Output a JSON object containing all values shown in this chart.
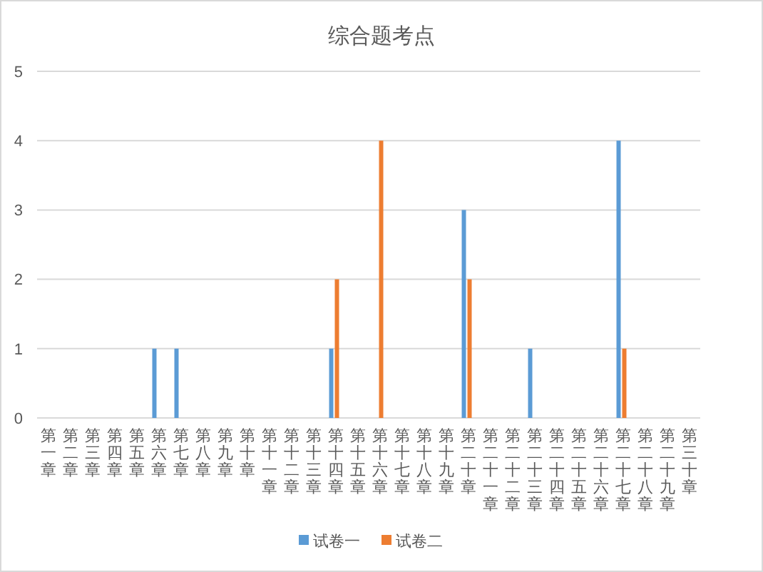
{
  "chart_data": {
    "type": "bar",
    "title": "综合题考点",
    "categories": [
      "第一章",
      "第二章",
      "第三章",
      "第四章",
      "第五章",
      "第六章",
      "第七章",
      "第八章",
      "第九章",
      "第十章",
      "第十一章",
      "第十二章",
      "第十三章",
      "第十四章",
      "第十五章",
      "第十六章",
      "第十七章",
      "第十八章",
      "第十九章",
      "第二十章",
      "第二十一章",
      "第二十二章",
      "第二十三章",
      "第二十四章",
      "第二十五章",
      "第二十六章",
      "第二十七章",
      "第二十八章",
      "第二十九章",
      "第三十章"
    ],
    "series": [
      {
        "name": "试卷一",
        "color": "#5b9bd5",
        "values": [
          0,
          0,
          0,
          0,
          0,
          1,
          1,
          0,
          0,
          0,
          0,
          0,
          0,
          1,
          0,
          0,
          0,
          0,
          0,
          3,
          0,
          0,
          1,
          0,
          0,
          0,
          4,
          0,
          0,
          0
        ]
      },
      {
        "name": "试卷二",
        "color": "#ed7d31",
        "values": [
          0,
          0,
          0,
          0,
          0,
          0,
          0,
          0,
          0,
          0,
          0,
          0,
          0,
          2,
          0,
          4,
          0,
          0,
          0,
          2,
          0,
          0,
          0,
          0,
          0,
          0,
          1,
          0,
          0,
          0
        ]
      }
    ],
    "ylim": [
      0,
      5
    ],
    "yticks": [
      0,
      1,
      2,
      3,
      4,
      5
    ],
    "grid": "y",
    "legend": "bottom"
  }
}
